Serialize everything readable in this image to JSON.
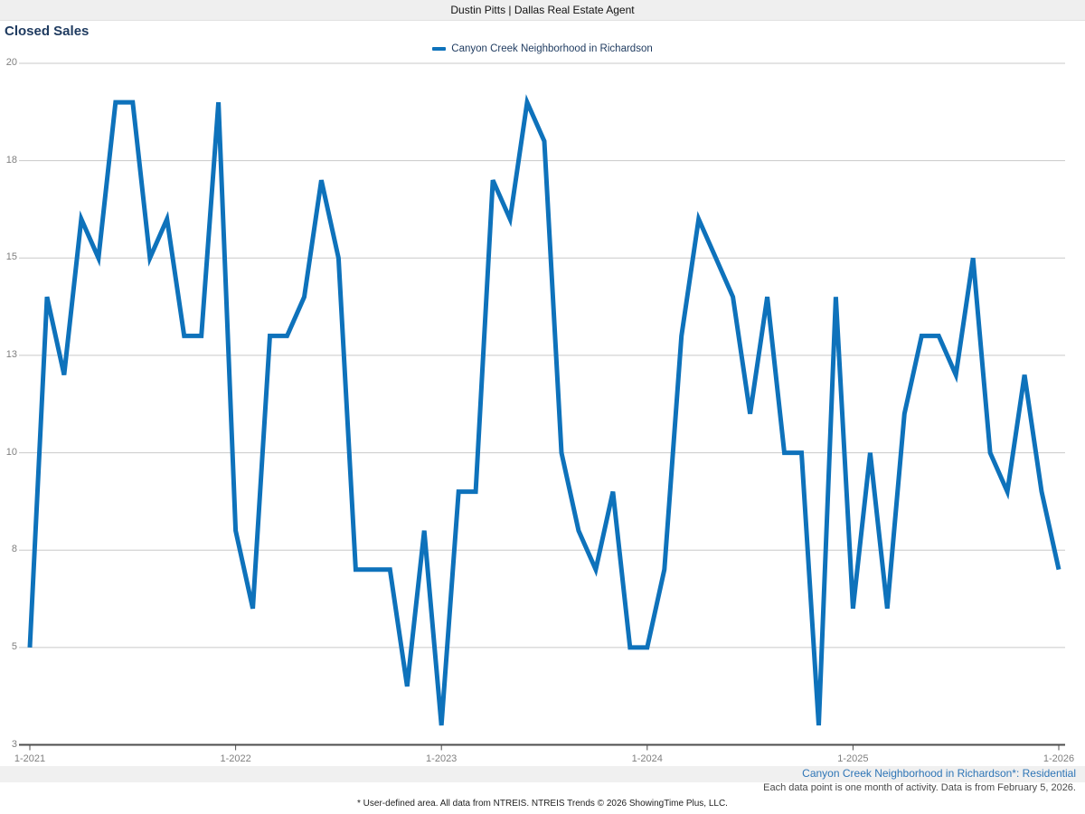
{
  "header": {
    "title": "Dustin Pitts | Dallas Real Estate Agent"
  },
  "page": {
    "title": "Closed Sales"
  },
  "legend": {
    "label": "Canyon Creek Neighborhood in Richardson"
  },
  "captions": {
    "primary": "Canyon Creek Neighborhood in Richardson*: Residential",
    "secondary": "Each data point is one month of activity. Data is from February 5, 2026."
  },
  "footer": {
    "text": "* User-defined area. All data from NTREIS. NTREIS Trends © 2026 ShowingTime Plus, LLC."
  },
  "colors": {
    "line": "#0e72bb",
    "title": "#1e3a5f",
    "caption_blue": "#2e75b6",
    "gridline": "#c9c9c9",
    "axis": "#4d4d4d",
    "tick_label": "#7f7f7f",
    "header_bg": "#efefef"
  },
  "chart_data": {
    "type": "line",
    "title": "Closed Sales",
    "x_start": "2021-01",
    "x_end": "2026-01",
    "x_interval": "month",
    "x_tick_labels": [
      "1-2021",
      "1-2022",
      "1-2023",
      "1-2024",
      "1-2025",
      "1-2026"
    ],
    "series": [
      {
        "name": "Canyon Creek Neighborhood in Richardson",
        "values": [
          5,
          14,
          12,
          16,
          15,
          19,
          19,
          15,
          16,
          13,
          13,
          19,
          8,
          6,
          13,
          13,
          14,
          17,
          15,
          7,
          7,
          7,
          4,
          8,
          3,
          9,
          9,
          17,
          16,
          19,
          18,
          10,
          8,
          7,
          9,
          5,
          5,
          7,
          13,
          16,
          15,
          14,
          11,
          14,
          10,
          10,
          3,
          14,
          6,
          10,
          6,
          11,
          13,
          13,
          12,
          15,
          10,
          9,
          12,
          9,
          7
        ]
      }
    ],
    "y_axis": {
      "min": 2.5,
      "max": 20,
      "tick_values": [
        2.5,
        5,
        7.5,
        10,
        12.5,
        15,
        17.5,
        20
      ],
      "tick_labels": [
        "3",
        "5",
        "8",
        "10",
        "13",
        "15",
        "18",
        "20"
      ]
    },
    "grid": "horizontal",
    "legend_position": "top-center",
    "line_width": 5
  }
}
